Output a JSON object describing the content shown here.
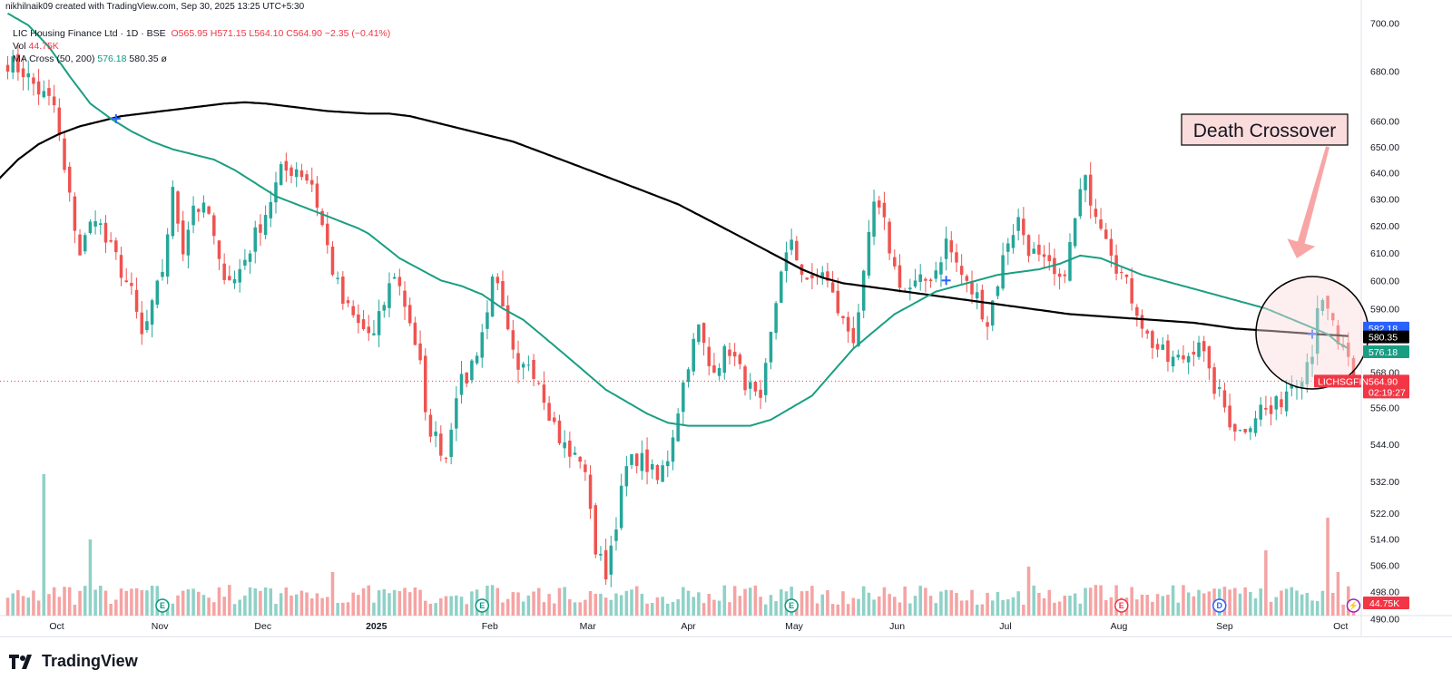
{
  "header": {
    "attribution": "nikhilnaik09 created with TradingView.com, Sep 30, 2025 13:25 UTC+5:30"
  },
  "legend": {
    "symbol_line": "LIC Housing Finance Ltd · 1D · BSE",
    "open": "O565.95",
    "high": "H571.15",
    "low": "L564.10",
    "close": "C564.90",
    "change": "−2.35 (−0.41%)",
    "volume_label": "Vol",
    "volume_value": "44.75K",
    "ma_label": "MA Cross (50, 200)",
    "ma50_value": "576.18",
    "ma200_value": "580.35",
    "ma_settings_icon": "ø"
  },
  "footer": {
    "brand": "TradingView"
  },
  "colors": {
    "up": "#26a69a",
    "down": "#ef5350",
    "up_vol": "#8fd1c7",
    "down_vol": "#f5a3a3",
    "ma50": "#1a9e82",
    "ma200": "#000000",
    "cross_marker": "#2962ff",
    "annotation_bg": "#fbdcdc",
    "arrow": "#f8a5a5"
  },
  "chart_data": {
    "type": "candlestick",
    "symbol": "LICHSGFIN",
    "y_scale": "log",
    "ylim": [
      492,
      702
    ],
    "y_ticks": [
      700,
      680,
      660,
      650,
      640,
      630,
      620,
      610,
      600,
      590,
      568,
      556,
      544,
      532,
      522,
      514,
      506,
      498,
      490
    ],
    "x_ticks": [
      {
        "label": "Oct",
        "x": 9.5
      },
      {
        "label": "Nov",
        "x": 29.5
      },
      {
        "label": "Dec",
        "x": 49.5
      },
      {
        "label": "2025",
        "x": 71.5
      },
      {
        "label": "Feb",
        "x": 93.5
      },
      {
        "label": "Mar",
        "x": 112.5
      },
      {
        "label": "Apr",
        "x": 132
      },
      {
        "label": "May",
        "x": 152.5
      },
      {
        "label": "Jun",
        "x": 172.5
      },
      {
        "label": "Jul",
        "x": 193.5
      },
      {
        "label": "Aug",
        "x": 215.5
      },
      {
        "label": "Sep",
        "x": 236
      },
      {
        "label": "Oct",
        "x": 258.5
      }
    ],
    "x_range": [
      -1.5,
      262.5
    ],
    "price_anchors": [
      [
        0,
        684
      ],
      [
        3,
        680
      ],
      [
        6,
        672
      ],
      [
        9,
        666
      ],
      [
        11,
        640
      ],
      [
        14,
        610
      ],
      [
        17,
        625
      ],
      [
        19,
        614
      ],
      [
        21,
        608
      ],
      [
        24,
        595
      ],
      [
        26,
        580
      ],
      [
        28,
        590
      ],
      [
        30,
        604
      ],
      [
        32,
        632
      ],
      [
        34,
        612
      ],
      [
        36,
        628
      ],
      [
        39,
        624
      ],
      [
        41,
        605
      ],
      [
        44,
        600
      ],
      [
        47,
        612
      ],
      [
        50,
        625
      ],
      [
        53,
        640
      ],
      [
        56,
        642
      ],
      [
        59,
        636
      ],
      [
        61,
        620
      ],
      [
        63,
        604
      ],
      [
        65,
        592
      ],
      [
        68,
        584
      ],
      [
        71,
        580
      ],
      [
        73,
        592
      ],
      [
        75,
        603
      ],
      [
        78,
        586
      ],
      [
        80,
        570
      ],
      [
        81,
        552
      ],
      [
        83,
        546
      ],
      [
        85,
        540
      ],
      [
        87,
        562
      ],
      [
        89,
        566
      ],
      [
        91,
        576
      ],
      [
        93,
        588
      ],
      [
        94,
        604
      ],
      [
        97,
        580
      ],
      [
        99,
        566
      ],
      [
        101,
        572
      ],
      [
        103,
        566
      ],
      [
        105,
        555
      ],
      [
        107,
        546
      ],
      [
        109,
        540
      ],
      [
        111,
        540
      ],
      [
        113,
        525
      ],
      [
        114,
        510
      ],
      [
        116,
        504
      ],
      [
        118,
        520
      ],
      [
        120,
        536
      ],
      [
        122,
        540
      ],
      [
        124,
        537
      ],
      [
        126,
        532
      ],
      [
        128,
        540
      ],
      [
        130,
        556
      ],
      [
        132,
        572
      ],
      [
        134,
        583
      ],
      [
        136,
        570
      ],
      [
        138,
        572
      ],
      [
        140,
        576
      ],
      [
        142,
        568
      ],
      [
        144,
        562
      ],
      [
        146,
        556
      ],
      [
        148,
        580
      ],
      [
        150,
        605
      ],
      [
        152,
        612
      ],
      [
        154,
        604
      ],
      [
        156,
        598
      ],
      [
        158,
        604
      ],
      [
        160,
        594
      ],
      [
        162,
        585
      ],
      [
        164,
        580
      ],
      [
        166,
        600
      ],
      [
        168,
        628
      ],
      [
        170,
        620
      ],
      [
        172,
        604
      ],
      [
        174,
        596
      ],
      [
        176,
        598
      ],
      [
        178,
        600
      ],
      [
        180,
        604
      ],
      [
        182,
        614
      ],
      [
        184,
        606
      ],
      [
        186,
        598
      ],
      [
        188,
        594
      ],
      [
        190,
        585
      ],
      [
        192,
        600
      ],
      [
        194,
        615
      ],
      [
        196,
        622
      ],
      [
        198,
        612
      ],
      [
        200,
        607
      ],
      [
        202,
        604
      ],
      [
        204,
        598
      ],
      [
        206,
        612
      ],
      [
        208,
        632
      ],
      [
        209,
        636
      ],
      [
        211,
        626
      ],
      [
        213,
        618
      ],
      [
        215,
        606
      ],
      [
        217,
        598
      ],
      [
        219,
        590
      ],
      [
        221,
        580
      ],
      [
        223,
        576
      ],
      [
        225,
        572
      ],
      [
        227,
        572
      ],
      [
        229,
        574
      ],
      [
        231,
        580
      ],
      [
        233,
        566
      ],
      [
        235,
        560
      ],
      [
        237,
        552
      ],
      [
        239,
        548
      ],
      [
        241,
        552
      ],
      [
        243,
        556
      ],
      [
        245,
        554
      ],
      [
        247,
        559
      ],
      [
        249,
        565
      ],
      [
        251,
        568
      ],
      [
        253,
        576
      ],
      [
        254,
        592
      ],
      [
        256,
        588
      ],
      [
        257,
        584
      ],
      [
        258,
        578
      ],
      [
        260,
        570
      ],
      [
        261,
        565
      ]
    ],
    "last_close": 564.9,
    "ma50_anchors": [
      [
        0,
        704
      ],
      [
        4,
        699
      ],
      [
        8,
        690
      ],
      [
        12,
        678
      ],
      [
        16,
        667
      ],
      [
        20,
        661
      ],
      [
        24,
        656
      ],
      [
        28,
        652
      ],
      [
        32,
        649
      ],
      [
        36,
        647
      ],
      [
        40,
        645
      ],
      [
        44,
        641
      ],
      [
        48,
        636
      ],
      [
        52,
        631
      ],
      [
        56,
        628
      ],
      [
        60,
        625
      ],
      [
        64,
        622
      ],
      [
        68,
        619
      ],
      [
        70,
        617
      ],
      [
        72,
        614
      ],
      [
        74,
        611
      ],
      [
        76,
        608
      ],
      [
        80,
        604
      ],
      [
        84,
        600
      ],
      [
        88,
        598
      ],
      [
        92,
        595
      ],
      [
        96,
        590
      ],
      [
        100,
        586
      ],
      [
        104,
        580
      ],
      [
        108,
        574
      ],
      [
        112,
        568
      ],
      [
        116,
        562
      ],
      [
        120,
        558
      ],
      [
        124,
        554
      ],
      [
        128,
        551
      ],
      [
        132,
        550
      ],
      [
        136,
        550
      ],
      [
        140,
        550
      ],
      [
        144,
        550
      ],
      [
        148,
        552
      ],
      [
        152,
        556
      ],
      [
        156,
        560
      ],
      [
        160,
        568
      ],
      [
        164,
        576
      ],
      [
        168,
        582
      ],
      [
        172,
        588
      ],
      [
        176,
        592
      ],
      [
        180,
        596
      ],
      [
        184,
        598
      ],
      [
        188,
        600
      ],
      [
        192,
        602
      ],
      [
        196,
        603
      ],
      [
        200,
        604
      ],
      [
        204,
        606
      ],
      [
        208,
        609
      ],
      [
        212,
        608
      ],
      [
        216,
        605
      ],
      [
        220,
        602
      ],
      [
        224,
        600
      ],
      [
        228,
        598
      ],
      [
        232,
        596
      ],
      [
        236,
        594
      ],
      [
        240,
        592
      ],
      [
        244,
        590
      ],
      [
        248,
        587
      ],
      [
        252,
        584
      ],
      [
        256,
        581
      ],
      [
        258,
        578
      ],
      [
        260,
        576
      ]
    ],
    "ma50_last": 576.18,
    "ma200_anchors": [
      [
        -2,
        637
      ],
      [
        2,
        645
      ],
      [
        6,
        651
      ],
      [
        10,
        655
      ],
      [
        14,
        658
      ],
      [
        18,
        660
      ],
      [
        22,
        662
      ],
      [
        26,
        663
      ],
      [
        30,
        664
      ],
      [
        34,
        665
      ],
      [
        38,
        666
      ],
      [
        42,
        667
      ],
      [
        46,
        667.5
      ],
      [
        50,
        667
      ],
      [
        54,
        666
      ],
      [
        58,
        665
      ],
      [
        62,
        664
      ],
      [
        66,
        663.5
      ],
      [
        70,
        663
      ],
      [
        74,
        663
      ],
      [
        78,
        662
      ],
      [
        82,
        660
      ],
      [
        86,
        658
      ],
      [
        90,
        656
      ],
      [
        94,
        654
      ],
      [
        98,
        652
      ],
      [
        102,
        649
      ],
      [
        106,
        646
      ],
      [
        110,
        643
      ],
      [
        114,
        640
      ],
      [
        118,
        637
      ],
      [
        122,
        634
      ],
      [
        126,
        631
      ],
      [
        130,
        628
      ],
      [
        134,
        624
      ],
      [
        138,
        620
      ],
      [
        142,
        616
      ],
      [
        146,
        612
      ],
      [
        150,
        608
      ],
      [
        154,
        604
      ],
      [
        158,
        601
      ],
      [
        162,
        599
      ],
      [
        166,
        598
      ],
      [
        170,
        597
      ],
      [
        174,
        596
      ],
      [
        178,
        595
      ],
      [
        182,
        594
      ],
      [
        186,
        593
      ],
      [
        190,
        592
      ],
      [
        194,
        591
      ],
      [
        198,
        590
      ],
      [
        202,
        589
      ],
      [
        206,
        588
      ],
      [
        210,
        587.5
      ],
      [
        214,
        587
      ],
      [
        218,
        586.5
      ],
      [
        222,
        586
      ],
      [
        226,
        585.5
      ],
      [
        230,
        585
      ],
      [
        234,
        584
      ],
      [
        238,
        583
      ],
      [
        242,
        582.5
      ],
      [
        246,
        582
      ],
      [
        250,
        581.5
      ],
      [
        254,
        581
      ],
      [
        258,
        580.6
      ],
      [
        260,
        580.35
      ]
    ],
    "ma200_last": 580.35,
    "ma_cross_markers": [
      [
        21,
        661
      ],
      [
        182,
        600
      ],
      [
        253,
        581
      ]
    ],
    "price_labels": [
      {
        "value": 582.18,
        "text": "582.18",
        "bg": "#2962ff"
      },
      {
        "value": 580.35,
        "text": "580.35",
        "bg": "#000000"
      },
      {
        "value": 576.18,
        "text": "576.18",
        "bg": "#1a9e82"
      },
      {
        "value": 564.9,
        "text": "564.90",
        "bg": "#f23645",
        "symbol": "LICHSGFIN",
        "countdown": "02:19:27"
      }
    ],
    "volume_last": "44.75K",
    "volume_spikes": [
      [
        7,
        26
      ],
      [
        16,
        14
      ],
      [
        63,
        8
      ],
      [
        69,
        5
      ],
      [
        136,
        4
      ],
      [
        198,
        9
      ],
      [
        244,
        12
      ],
      [
        256,
        18
      ],
      [
        258,
        8
      ]
    ],
    "event_badges": [
      {
        "x": 30,
        "letter": "E",
        "type": "earnings"
      },
      {
        "x": 92,
        "letter": "E",
        "type": "earnings"
      },
      {
        "x": 152,
        "letter": "E",
        "type": "earnings"
      },
      {
        "x": 216,
        "letter": "E",
        "type": "earnings"
      },
      {
        "x": 235,
        "letter": "D",
        "type": "dividend"
      },
      {
        "x": 261,
        "letter": "⚡",
        "type": "split"
      }
    ],
    "annotation": {
      "text": "Death Crossover",
      "circle_center": [
        253,
        581.5
      ],
      "arrow_from": [
        256,
        650
      ],
      "arrow_to": [
        250,
        608
      ]
    }
  }
}
